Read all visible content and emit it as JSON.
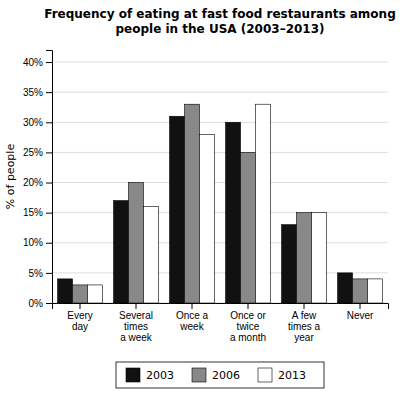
{
  "chart_data": {
    "type": "bar",
    "title": "Frequency of eating at fast food restaurants among\npeople in the USA (2003–2013)",
    "categories": [
      "Every\nday",
      "Several\ntimes\na week",
      "Once a\nweek",
      "Once or\ntwice\na month",
      "A few\ntimes a\nyear",
      "Never"
    ],
    "series": [
      {
        "name": "2003",
        "color": "#111111",
        "values": [
          4,
          17,
          31,
          30,
          13,
          5
        ]
      },
      {
        "name": "2006",
        "color": "#888888",
        "values": [
          3,
          20,
          33,
          25,
          15,
          4
        ]
      },
      {
        "name": "2013",
        "color": "#ffffff",
        "values": [
          3,
          16,
          28,
          33,
          15,
          4
        ]
      }
    ],
    "ylabel": "% of people",
    "ylim": [
      0,
      42
    ],
    "yticks": [
      {
        "value": 0,
        "label": "0%"
      },
      {
        "value": 5,
        "label": "5%"
      },
      {
        "value": 10,
        "label": "10%"
      },
      {
        "value": 15,
        "label": "15%"
      },
      {
        "value": 20,
        "label": "20%"
      },
      {
        "value": 25,
        "label": "25%"
      },
      {
        "value": 30,
        "label": "30%"
      },
      {
        "value": 35,
        "label": "35%"
      },
      {
        "value": 40,
        "label": "40%"
      }
    ],
    "grid": true,
    "legend": "bottom"
  }
}
